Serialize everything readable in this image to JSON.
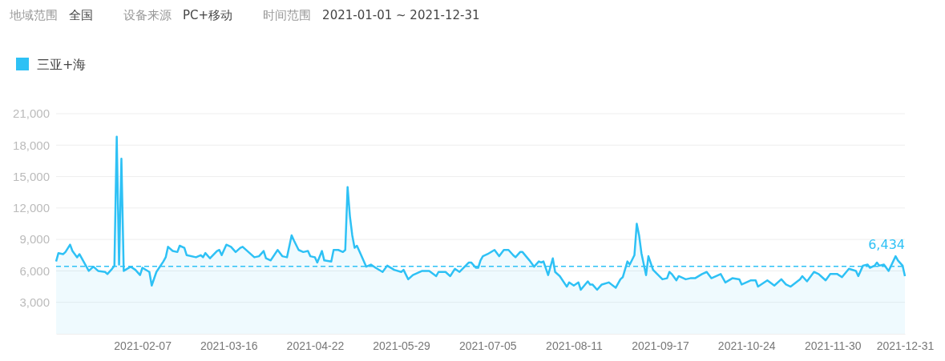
{
  "chart_data": {
    "type": "area",
    "annotations": [
      "地域范围",
      "全国",
      "设备来源",
      "PC+移动",
      "时间范围",
      "2021-01-01 ~ 2021-12-31"
    ],
    "x": [
      "2021-01-01",
      "2021-01-02",
      "2021-01-04",
      "2021-01-05",
      "2021-01-07",
      "2021-01-08",
      "2021-01-10",
      "2021-01-11",
      "2021-01-13",
      "2021-01-15",
      "2021-01-17",
      "2021-01-19",
      "2021-01-22",
      "2021-01-23",
      "2021-01-25",
      "2021-01-26",
      "2021-01-27",
      "2021-01-28",
      "2021-01-29",
      "2021-01-30",
      "2021-02-02",
      "2021-02-04",
      "2021-02-06",
      "2021-02-07",
      "2021-02-10",
      "2021-02-11",
      "2021-02-13",
      "2021-02-16",
      "2021-02-17",
      "2021-02-18",
      "2021-02-20",
      "2021-02-22",
      "2021-02-23",
      "2021-02-25",
      "2021-02-26",
      "2021-03-02",
      "2021-03-04",
      "2021-03-05",
      "2021-03-06",
      "2021-03-08",
      "2021-03-11",
      "2021-03-12",
      "2021-03-13",
      "2021-03-15",
      "2021-03-17",
      "2021-03-19",
      "2021-03-21",
      "2021-03-22",
      "2021-03-27",
      "2021-03-29",
      "2021-03-31",
      "2021-04-01",
      "2021-04-03",
      "2021-04-06",
      "2021-04-08",
      "2021-04-10",
      "2021-04-12",
      "2021-04-13",
      "2021-04-15",
      "2021-04-17",
      "2021-04-19",
      "2021-04-20",
      "2021-04-22",
      "2021-04-23",
      "2021-04-25",
      "2021-04-26",
      "2021-04-29",
      "2021-04-30",
      "2021-05-02",
      "2021-05-04",
      "2021-05-05",
      "2021-05-06",
      "2021-05-07",
      "2021-05-08",
      "2021-05-09",
      "2021-05-10",
      "2021-05-12",
      "2021-05-14",
      "2021-05-16",
      "2021-05-18",
      "2021-05-21",
      "2021-05-23",
      "2021-05-26",
      "2021-05-29",
      "2021-05-30",
      "2021-06-01",
      "2021-06-03",
      "2021-06-07",
      "2021-06-10",
      "2021-06-13",
      "2021-06-14",
      "2021-06-17",
      "2021-06-19",
      "2021-06-21",
      "2021-06-23",
      "2021-06-27",
      "2021-06-28",
      "2021-06-30",
      "2021-07-01",
      "2021-07-02",
      "2021-07-03",
      "2021-07-05",
      "2021-07-08",
      "2021-07-10",
      "2021-07-12",
      "2021-07-14",
      "2021-07-16",
      "2021-07-17",
      "2021-07-19",
      "2021-07-20",
      "2021-07-23",
      "2021-07-25",
      "2021-07-27",
      "2021-07-28",
      "2021-07-29",
      "2021-07-31",
      "2021-08-02",
      "2021-08-03",
      "2021-08-05",
      "2021-08-08",
      "2021-08-09",
      "2021-08-11",
      "2021-08-13",
      "2021-08-14",
      "2021-08-17",
      "2021-08-18",
      "2021-08-19",
      "2021-08-21",
      "2021-08-23",
      "2021-08-26",
      "2021-08-29",
      "2021-08-31",
      "2021-09-01",
      "2021-09-03",
      "2021-09-04",
      "2021-09-06",
      "2021-09-07",
      "2021-09-08",
      "2021-09-09",
      "2021-09-11",
      "2021-09-12",
      "2021-09-14",
      "2021-09-18",
      "2021-09-20",
      "2021-09-21",
      "2021-09-22",
      "2021-09-24",
      "2021-09-25",
      "2021-09-28",
      "2021-09-30",
      "2021-10-02",
      "2021-10-05",
      "2021-10-07",
      "2021-10-09",
      "2021-10-13",
      "2021-10-15",
      "2021-10-18",
      "2021-10-21",
      "2021-10-22",
      "2021-10-26",
      "2021-10-28",
      "2021-10-29",
      "2021-11-02",
      "2021-11-05",
      "2021-11-08",
      "2021-11-10",
      "2021-11-12",
      "2021-11-16",
      "2021-11-17",
      "2021-11-19",
      "2021-11-22",
      "2021-11-24",
      "2021-11-25",
      "2021-11-27",
      "2021-11-29",
      "2021-12-02",
      "2021-12-04",
      "2021-12-07",
      "2021-12-10",
      "2021-12-11",
      "2021-12-13",
      "2021-12-15",
      "2021-12-16",
      "2021-12-18",
      "2021-12-19",
      "2021-12-20",
      "2021-12-22",
      "2021-12-24",
      "2021-12-27",
      "2021-12-28",
      "2021-12-30",
      "2021-12-31"
    ],
    "series": [
      {
        "name": "三亚+海",
        "color": "#2ec1f5",
        "values": [
          6900,
          7700,
          7600,
          7800,
          8500,
          7900,
          7300,
          7600,
          6800,
          6000,
          6400,
          6000,
          5900,
          5700,
          6200,
          6500,
          18800,
          6600,
          16700,
          6000,
          6400,
          6100,
          5600,
          6300,
          5900,
          4600,
          5900,
          6900,
          7300,
          8300,
          7900,
          7800,
          8400,
          8200,
          7500,
          7300,
          7500,
          7300,
          7700,
          7200,
          7900,
          8000,
          7500,
          8500,
          8300,
          7800,
          8200,
          8300,
          7300,
          7400,
          7900,
          7200,
          7000,
          8000,
          7400,
          7300,
          9400,
          8900,
          8000,
          7800,
          7900,
          7400,
          7300,
          6800,
          7900,
          7000,
          6900,
          8000,
          8000,
          7800,
          8000,
          14000,
          11200,
          9400,
          8200,
          8400,
          7400,
          6400,
          6600,
          6300,
          5900,
          6500,
          6100,
          5900,
          6100,
          5200,
          5600,
          6000,
          6000,
          5500,
          5900,
          5900,
          5500,
          6200,
          5900,
          6800,
          6800,
          6300,
          6300,
          7000,
          7400,
          7600,
          8000,
          7400,
          8000,
          8000,
          7500,
          7300,
          7800,
          7800,
          7000,
          6400,
          6900,
          6800,
          6900,
          5600,
          7200,
          5900,
          5500,
          4500,
          4900,
          4600,
          4900,
          4200,
          5000,
          4700,
          4700,
          4200,
          4700,
          4900,
          4400,
          5200,
          5400,
          6900,
          6600,
          7500,
          10500,
          9400,
          7700,
          5600,
          7400,
          6100,
          5200,
          5300,
          5900,
          5700,
          5100,
          5500,
          5200,
          5300,
          5300,
          5700,
          5900,
          5300,
          5700,
          4900,
          5300,
          5200,
          4700,
          5100,
          5100,
          4500,
          5100,
          4600,
          5200,
          4700,
          4500,
          5200,
          5500,
          5000,
          5900,
          5700,
          5500,
          5100,
          5700,
          5700,
          5400,
          6200,
          6000,
          5500,
          6500,
          6600,
          6300,
          6500,
          6800,
          6500,
          6600,
          6000,
          7400,
          7000,
          6500,
          5500
        ]
      }
    ],
    "xlim": [
      "2021-01-01",
      "2021-12-31"
    ],
    "xticks": [
      "2021-02-07",
      "2021-03-16",
      "2021-04-22",
      "2021-05-29",
      "2021-07-05",
      "2021-08-11",
      "2021-09-17",
      "2021-10-24",
      "2021-11-30",
      "2021-12-31"
    ],
    "ylim": [
      0,
      21000
    ],
    "yticks": [
      {
        "value": 3000,
        "label": "3,000"
      },
      {
        "value": 6000,
        "label": "6,000"
      },
      {
        "value": 9000,
        "label": "9,000"
      },
      {
        "value": 12000,
        "label": "12,000"
      },
      {
        "value": 15000,
        "label": "15,000"
      },
      {
        "value": 18000,
        "label": "18,000"
      },
      {
        "value": 21000,
        "label": "21,000"
      }
    ],
    "ref_lines": [
      {
        "axis": "y",
        "value": 6434,
        "label": "6,434",
        "line_style": "dashed"
      }
    ],
    "grid": "y",
    "legend": "top left",
    "marker": "none",
    "line_style": "solid"
  }
}
